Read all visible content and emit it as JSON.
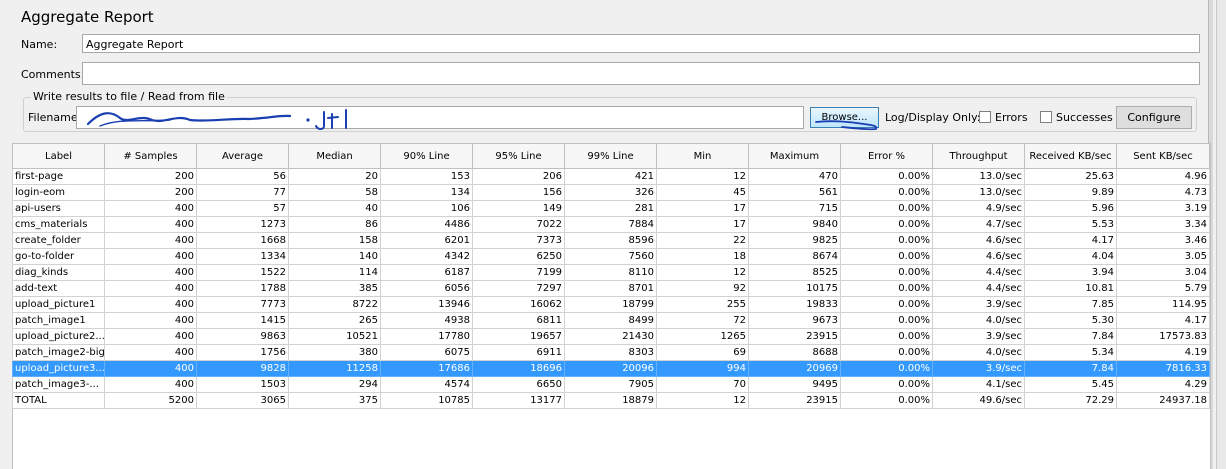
{
  "panel": {
    "title": "Aggregate Report",
    "name_label": "Name:",
    "name_value": "Aggregate Report",
    "comments_label": "Comments:",
    "comments_value": ""
  },
  "file_group": {
    "title": "Write results to file / Read from file",
    "filename_label": "Filename",
    "filename_value": "",
    "browse_label": "Browse...",
    "log_display_label": "Log/Display Only:",
    "errors_label": "Errors",
    "successes_label": "Successes",
    "configure_label": "Configure"
  },
  "table": {
    "columns": [
      "Label",
      "# Samples",
      "Average",
      "Median",
      "90% Line",
      "95% Line",
      "99% Line",
      "Min",
      "Maximum",
      "Error %",
      "Throughput",
      "Received KB/sec",
      "Sent KB/sec"
    ],
    "selected_row": 12,
    "rows": [
      [
        "first-page",
        "200",
        "56",
        "20",
        "153",
        "206",
        "421",
        "12",
        "470",
        "0.00%",
        "13.0/sec",
        "25.63",
        "4.96"
      ],
      [
        "login-eom",
        "200",
        "77",
        "58",
        "134",
        "156",
        "326",
        "45",
        "561",
        "0.00%",
        "13.0/sec",
        "9.89",
        "4.73"
      ],
      [
        "api-users",
        "400",
        "57",
        "40",
        "106",
        "149",
        "281",
        "17",
        "715",
        "0.00%",
        "4.9/sec",
        "5.96",
        "3.19"
      ],
      [
        "cms_materials",
        "400",
        "1273",
        "86",
        "4486",
        "7022",
        "7884",
        "17",
        "9840",
        "0.00%",
        "4.7/sec",
        "5.53",
        "3.34"
      ],
      [
        "create_folder",
        "400",
        "1668",
        "158",
        "6201",
        "7373",
        "8596",
        "22",
        "9825",
        "0.00%",
        "4.6/sec",
        "4.17",
        "3.46"
      ],
      [
        "go-to-folder",
        "400",
        "1334",
        "140",
        "4342",
        "6250",
        "7560",
        "18",
        "8674",
        "0.00%",
        "4.6/sec",
        "4.04",
        "3.05"
      ],
      [
        "diag_kinds",
        "400",
        "1522",
        "114",
        "6187",
        "7199",
        "8110",
        "12",
        "8525",
        "0.00%",
        "4.4/sec",
        "3.94",
        "3.04"
      ],
      [
        "add-text",
        "400",
        "1788",
        "385",
        "6056",
        "7297",
        "8701",
        "92",
        "10175",
        "0.00%",
        "4.4/sec",
        "10.81",
        "5.79"
      ],
      [
        "upload_picture1",
        "400",
        "7773",
        "8722",
        "13946",
        "16062",
        "18799",
        "255",
        "19833",
        "0.00%",
        "3.9/sec",
        "7.85",
        "114.95"
      ],
      [
        "patch_image1",
        "400",
        "1415",
        "265",
        "4938",
        "6811",
        "8499",
        "72",
        "9673",
        "0.00%",
        "4.0/sec",
        "5.30",
        "4.17"
      ],
      [
        "upload_picture2...",
        "400",
        "9863",
        "10521",
        "17780",
        "19657",
        "21430",
        "1265",
        "23915",
        "0.00%",
        "3.9/sec",
        "7.84",
        "17573.83"
      ],
      [
        "patch_image2-big",
        "400",
        "1756",
        "380",
        "6075",
        "6911",
        "8303",
        "69",
        "8688",
        "0.00%",
        "4.0/sec",
        "5.34",
        "4.19"
      ],
      [
        "upload_picture3...",
        "400",
        "9828",
        "11258",
        "17686",
        "18696",
        "20096",
        "994",
        "20969",
        "0.00%",
        "3.9/sec",
        "7.84",
        "7816.33"
      ],
      [
        "patch_image3-...",
        "400",
        "1503",
        "294",
        "4574",
        "6650",
        "7905",
        "70",
        "9495",
        "0.00%",
        "4.1/sec",
        "5.45",
        "4.29"
      ],
      [
        "TOTAL",
        "5200",
        "3065",
        "375",
        "10785",
        "13177",
        "18879",
        "12",
        "23915",
        "0.00%",
        "49.6/sec",
        "72.29",
        "24937.18"
      ]
    ]
  },
  "colors": {
    "selection": "#3399ff",
    "scribble": "#1a3fb0"
  },
  "icons": [
    "checkbox-errors-icon",
    "checkbox-successes-icon",
    "redaction-scribble"
  ]
}
